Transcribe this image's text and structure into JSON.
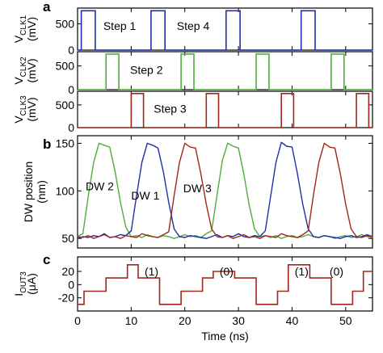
{
  "x_axis": {
    "label": "Time (ns)",
    "ticks": [
      0,
      10,
      20,
      30,
      40,
      50
    ],
    "range": [
      0,
      55
    ]
  },
  "chart_data": [
    {
      "panel": "a",
      "type": "line",
      "ylabel_main": "V",
      "ylabel_sub": "CLK1",
      "ylabel_unit": "(mV)",
      "ylim": [
        0,
        800
      ],
      "yticks": [
        0,
        500
      ],
      "color": "#1f2fa8",
      "x": [
        0,
        0.7,
        0.7,
        3.3,
        3.3,
        13.7,
        13.7,
        16.3,
        16.3,
        27.7,
        27.7,
        30.3,
        30.3,
        41.7,
        41.7,
        44.3,
        44.3,
        55
      ],
      "y": [
        0,
        0,
        750,
        750,
        0,
        0,
        750,
        750,
        0,
        0,
        750,
        750,
        0,
        0,
        750,
        750,
        0,
        0
      ],
      "annotations": [
        {
          "text": "Step 1",
          "x": 4.8,
          "y": 460
        },
        {
          "text": "Step 4",
          "x": 18.5,
          "y": 460
        }
      ]
    },
    {
      "panel": "a",
      "type": "line",
      "ylabel_main": "V",
      "ylabel_sub": "CLK2",
      "ylabel_unit": "(mV)",
      "ylim": [
        0,
        800
      ],
      "yticks": [
        0,
        500
      ],
      "color": "#4caf3a",
      "x": [
        0,
        5.3,
        5.3,
        7.7,
        7.7,
        19.3,
        19.3,
        21.7,
        21.7,
        33.3,
        33.3,
        35.7,
        35.7,
        47.3,
        47.3,
        49.7,
        49.7,
        55
      ],
      "y": [
        0,
        0,
        750,
        750,
        0,
        0,
        750,
        750,
        0,
        0,
        750,
        750,
        0,
        0,
        750,
        750,
        0,
        0
      ],
      "annotations": [
        {
          "text": "Step 2",
          "x": 9.8,
          "y": 420
        }
      ]
    },
    {
      "panel": "a",
      "type": "line",
      "ylabel_main": "V",
      "ylabel_sub": "CLK3",
      "ylabel_unit": "(mV)",
      "ylim": [
        0,
        800
      ],
      "yticks": [
        0,
        500
      ],
      "color": "#a0281a",
      "x": [
        0,
        10.0,
        10.0,
        12.3,
        12.3,
        24.0,
        24.0,
        26.3,
        26.3,
        38.0,
        38.0,
        40.3,
        40.3,
        52.0,
        52.0,
        54.3,
        54.3,
        55
      ],
      "y": [
        0,
        0,
        750,
        750,
        0,
        0,
        750,
        750,
        0,
        0,
        750,
        750,
        0,
        0,
        750,
        750,
        0,
        0
      ],
      "annotations": [
        {
          "text": "Step 3",
          "x": 14.2,
          "y": 420
        }
      ]
    },
    {
      "panel": "b",
      "type": "line",
      "ylabel": "DW position",
      "ylabel_unit": "(nm)",
      "ylim": [
        40,
        158
      ],
      "yticks": [
        50,
        100,
        150
      ],
      "series": [
        {
          "color": "#4caf3a",
          "x": [
            0,
            1,
            2,
            3,
            4,
            5,
            6,
            7,
            8,
            9,
            10,
            11,
            12,
            13,
            14,
            15,
            16,
            17,
            18,
            19,
            20,
            21,
            22,
            23,
            24,
            25,
            26,
            27,
            28,
            29,
            30,
            31,
            32,
            33,
            34,
            35,
            36,
            37,
            38,
            39,
            40,
            41,
            42,
            43,
            44,
            45,
            46,
            47,
            48,
            49,
            50,
            51,
            52,
            53,
            54,
            55
          ],
          "y": [
            52,
            55,
            95,
            130,
            150,
            148,
            146,
            120,
            88,
            62,
            52,
            53,
            51,
            54,
            52,
            51,
            53,
            52,
            50,
            52,
            54,
            52,
            53,
            51,
            55,
            58,
            95,
            132,
            150,
            147,
            145,
            118,
            85,
            60,
            52,
            53,
            51,
            53,
            50,
            52,
            53,
            51,
            52,
            54,
            52,
            51,
            53,
            52,
            50,
            52,
            53,
            51,
            52,
            54,
            52,
            51
          ]
        },
        {
          "color": "#1f2fa8",
          "x": [
            0,
            1,
            2,
            3,
            4,
            5,
            6,
            7,
            8,
            9,
            10,
            11,
            12,
            13,
            14,
            15,
            16,
            17,
            18,
            19,
            20,
            21,
            22,
            23,
            24,
            25,
            26,
            27,
            28,
            29,
            30,
            31,
            32,
            33,
            34,
            35,
            36,
            37,
            38,
            39,
            40,
            41,
            42,
            43,
            44,
            45,
            46,
            47,
            48,
            49,
            50,
            51,
            52,
            53,
            54,
            55
          ],
          "y": [
            50,
            52,
            51,
            53,
            52,
            55,
            51,
            52,
            54,
            53,
            58,
            95,
            130,
            150,
            148,
            145,
            120,
            88,
            60,
            52,
            51,
            53,
            52,
            51,
            50,
            52,
            54,
            51,
            53,
            52,
            55,
            52,
            51,
            53,
            52,
            58,
            94,
            130,
            151,
            147,
            146,
            118,
            86,
            60,
            52,
            51,
            53,
            52,
            51,
            50,
            52,
            53,
            51,
            52,
            54,
            52
          ]
        },
        {
          "color": "#a0281a",
          "x": [
            0,
            1,
            2,
            3,
            4,
            5,
            6,
            7,
            8,
            9,
            10,
            11,
            12,
            13,
            14,
            15,
            16,
            17,
            18,
            19,
            20,
            21,
            22,
            23,
            24,
            25,
            26,
            27,
            28,
            29,
            30,
            31,
            32,
            33,
            34,
            35,
            36,
            37,
            38,
            39,
            40,
            41,
            42,
            43,
            44,
            45,
            46,
            47,
            48,
            49,
            50,
            51,
            52,
            53,
            54,
            55
          ],
          "y": [
            52,
            51,
            53,
            50,
            52,
            54,
            51,
            52,
            50,
            53,
            52,
            51,
            55,
            53,
            52,
            51,
            54,
            57,
            95,
            130,
            150,
            146,
            145,
            118,
            86,
            60,
            52,
            51,
            53,
            50,
            52,
            54,
            51,
            52,
            50,
            53,
            52,
            51,
            55,
            53,
            52,
            51,
            54,
            58,
            96,
            130,
            150,
            146,
            145,
            118,
            86,
            60,
            52,
            51,
            53,
            52
          ]
        }
      ],
      "annotations": [
        {
          "text": "DW 2",
          "x": 1.5,
          "y": 105
        },
        {
          "text": "DW 1",
          "x": 10.0,
          "y": 95
        },
        {
          "text": "DW 3",
          "x": 19.7,
          "y": 103
        }
      ]
    },
    {
      "panel": "c",
      "type": "line",
      "ylabel_main": "I",
      "ylabel_sub": "OUT3",
      "ylabel_unit": "(μA)",
      "ylim": [
        -40,
        42
      ],
      "yticks": [
        -20,
        0,
        20
      ],
      "color": "#a0281a",
      "x": [
        0,
        1.2,
        1.2,
        5.3,
        5.3,
        9.3,
        9.3,
        11.3,
        11.3,
        15.3,
        15.3,
        19.3,
        19.3,
        23.3,
        23.3,
        25.3,
        25.3,
        29.3,
        29.3,
        33.3,
        33.3,
        37.3,
        37.3,
        39.3,
        39.3,
        43.3,
        43.3,
        47.3,
        47.3,
        51.3,
        51.3,
        53.3,
        53.3,
        55
      ],
      "y": [
        -30,
        -30,
        -10,
        -10,
        10,
        10,
        30,
        30,
        10,
        10,
        -30,
        -30,
        -10,
        -10,
        10,
        10,
        20,
        20,
        10,
        10,
        -30,
        -30,
        -10,
        -10,
        30,
        30,
        10,
        10,
        -30,
        -30,
        -10,
        -10,
        20,
        20
      ],
      "annotations": [
        {
          "text": "(1)",
          "x": 12.5,
          "y": 20
        },
        {
          "text": "(0)",
          "x": 26.5,
          "y": 20
        },
        {
          "text": "(1)",
          "x": 40.5,
          "y": 20
        },
        {
          "text": "(0)",
          "x": 47.0,
          "y": 20
        }
      ]
    }
  ],
  "panel_letters": {
    "a": "a",
    "b": "b",
    "c": "c"
  }
}
